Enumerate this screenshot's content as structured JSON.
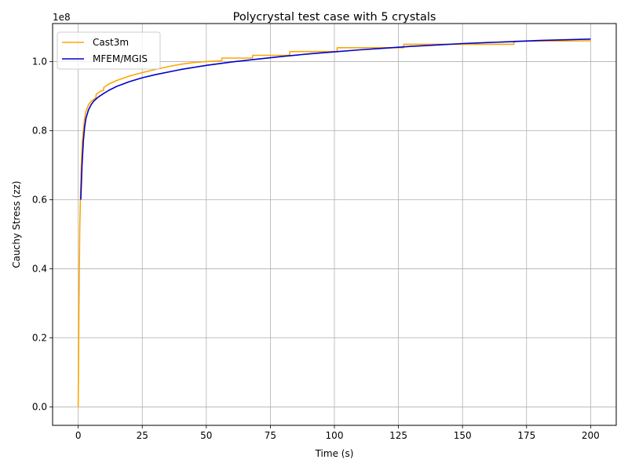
{
  "chart_data": {
    "type": "line",
    "title": "Polycrystal test case with 5 crystals",
    "xlabel": "Time (s)",
    "ylabel": "Cauchy Stress (zz)",
    "y_offset_label": "1e8",
    "y_scale": 100000000,
    "xlim": [
      -10,
      210
    ],
    "ylim": [
      -5300000,
      111000000
    ],
    "xticks": [
      0,
      25,
      50,
      75,
      100,
      125,
      150,
      175,
      200
    ],
    "xtick_labels": [
      "0",
      "25",
      "50",
      "75",
      "100",
      "125",
      "150",
      "175",
      "200"
    ],
    "yticks": [
      0,
      20000000,
      40000000,
      60000000,
      80000000,
      100000000
    ],
    "ytick_labels": [
      "0.0",
      "0.2",
      "0.4",
      "0.6",
      "0.8",
      "1.0"
    ],
    "grid": true,
    "legend_position": "top-left",
    "series": [
      {
        "name": "Cast3m",
        "color": "#ffa500",
        "x": [
          0,
          0.3,
          0.6,
          0.9,
          1.2,
          1.6,
          2,
          2.5,
          3,
          3.5,
          4,
          5,
          6,
          6.9,
          7,
          8,
          9,
          9.9,
          10,
          12,
          15,
          20,
          25,
          30,
          35,
          40,
          45,
          50,
          55,
          56,
          56.1,
          68,
          68.1,
          82.5,
          82.6,
          101,
          101.1,
          127,
          127.1,
          170,
          170.1,
          200
        ],
        "y": [
          0,
          30000000,
          52000000,
          62000000,
          70000000,
          77000000,
          80000000,
          83500000,
          85500000,
          86500000,
          87500000,
          88500000,
          89000000,
          89500000,
          90500000,
          91000000,
          91500000,
          91700000,
          92500000,
          93500000,
          94500000,
          95800000,
          96800000,
          97700000,
          98500000,
          99200000,
          99700000,
          100000000,
          100200000,
          100200000,
          101000000,
          101000000,
          101800000,
          101800000,
          102900000,
          102900000,
          104000000,
          104000000,
          105000000,
          105000000,
          105900000,
          106000000
        ]
      },
      {
        "name": "MFEM/MGIS",
        "color": "#0000cd",
        "x": [
          1,
          1.5,
          2,
          2.5,
          3,
          4,
          5,
          6,
          7,
          8,
          10,
          12,
          15,
          20,
          25,
          30,
          40,
          50,
          60,
          70,
          80,
          90,
          100,
          110,
          120,
          130,
          140,
          150,
          160,
          170,
          180,
          190,
          200
        ],
        "y": [
          60000000,
          70000000,
          77000000,
          81000000,
          83500000,
          86000000,
          87500000,
          88500000,
          89200000,
          89800000,
          90800000,
          91700000,
          92800000,
          94200000,
          95300000,
          96200000,
          97700000,
          98900000,
          99900000,
          100700000,
          101500000,
          102200000,
          102800000,
          103400000,
          103900000,
          104400000,
          104800000,
          105200000,
          105500000,
          105800000,
          106100000,
          106300000,
          106500000
        ]
      }
    ]
  }
}
